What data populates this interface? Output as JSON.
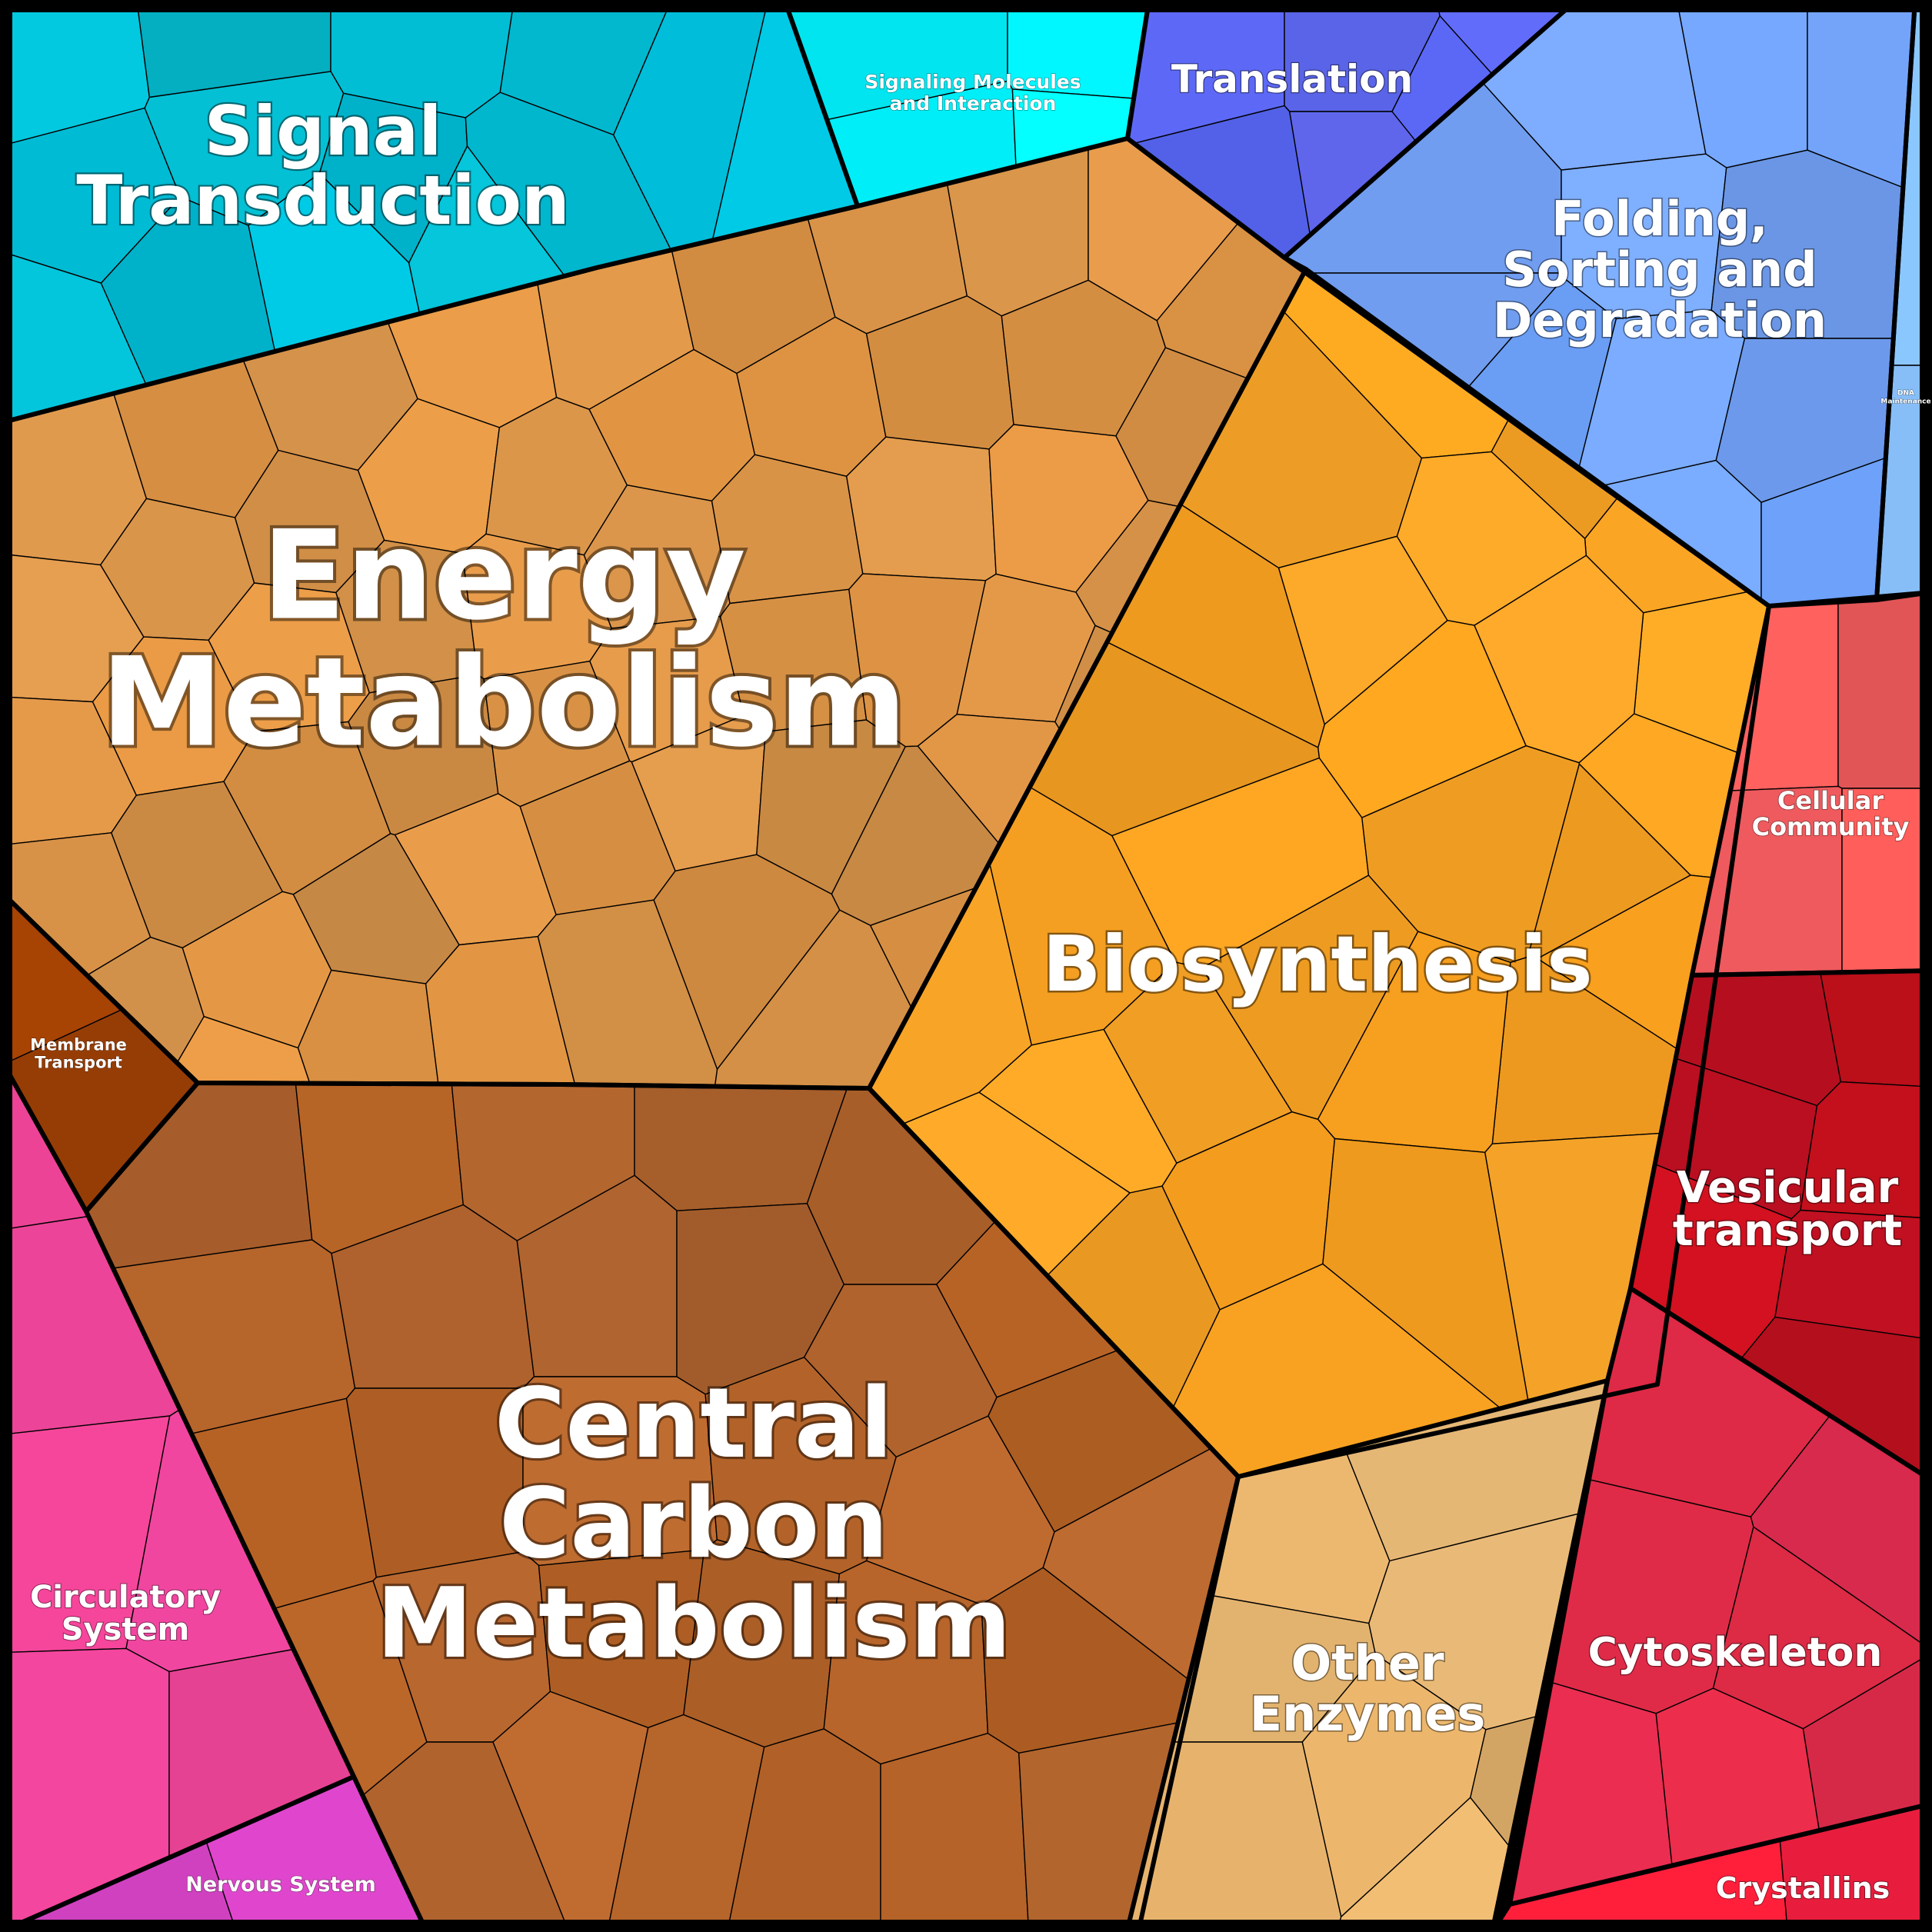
{
  "regions": [
    {
      "key": "signal",
      "label": [
        "Signal",
        "Transduction"
      ],
      "color": "#00bcd4"
    },
    {
      "key": "signaling",
      "label": [
        "Signaling Molecules",
        "and Interaction"
      ],
      "color": "#00f7ff"
    },
    {
      "key": "translation",
      "label": [
        "Translation"
      ],
      "color": "#5c67f0"
    },
    {
      "key": "folding",
      "label": [
        "Folding,",
        "Sorting and",
        "Degradation"
      ],
      "color": "#72a2f8"
    },
    {
      "key": "dna",
      "label": [
        "DNA",
        "Maintenance"
      ],
      "color": "#84bdf8"
    },
    {
      "key": "energy",
      "label": [
        "Energy",
        "Metabolism"
      ],
      "color": "#da9346"
    },
    {
      "key": "biosynthesis",
      "label": [
        "Biosynthesis"
      ],
      "color": "#f4a023"
    },
    {
      "key": "membrane",
      "label": [
        "Membrane",
        "Transport"
      ],
      "color": "#983e06"
    },
    {
      "key": "central",
      "label": [
        "Central",
        "Carbon",
        "Metabolism"
      ],
      "color": "#b5642a"
    },
    {
      "key": "cellular",
      "label": [
        "Cellular",
        "Community"
      ],
      "color": "#f45b5b"
    },
    {
      "key": "vesicular",
      "label": [
        "Vesicular",
        "transport"
      ],
      "color": "#c3101e"
    },
    {
      "key": "other",
      "label": [
        "Other",
        "Enzymes"
      ],
      "color": "#e4b36e"
    },
    {
      "key": "cytoskeleton",
      "label": [
        "Cytoskeleton"
      ],
      "color": "#dc2a48"
    },
    {
      "key": "crystallins",
      "label": [
        "Crystallins"
      ],
      "color": "#f71e3c"
    },
    {
      "key": "circulatory",
      "label": [
        "Circulatory",
        "System"
      ],
      "color": "#f2459a"
    },
    {
      "key": "nervous",
      "label": [
        "Nervous System"
      ],
      "color": "#d944c6"
    }
  ]
}
